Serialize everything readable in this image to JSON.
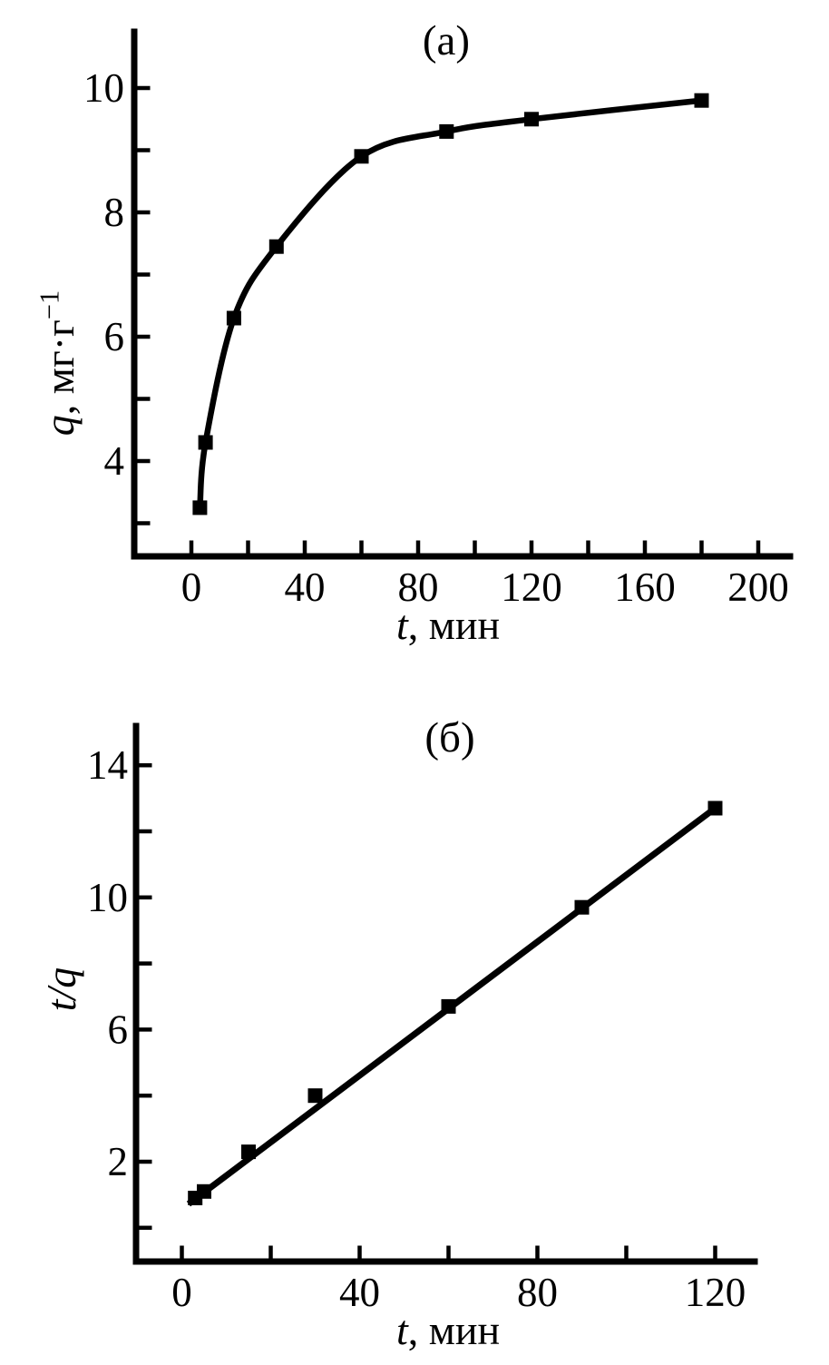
{
  "page": {
    "background": "#ffffff",
    "ink": "#000000"
  },
  "chart_data": [
    {
      "id": "a",
      "type": "scatter",
      "title": "(а)",
      "xlabel": "t, мин",
      "xlabel_var": "t",
      "xlabel_rest": ", мин",
      "ylabel": "q, мг·г−1",
      "ylabel_var": "q",
      "ylabel_rest": ", мг·г",
      "ylabel_sup": "−1",
      "x": [
        3,
        5,
        15,
        30,
        60,
        90,
        120,
        180
      ],
      "y": [
        3.25,
        4.3,
        6.3,
        7.45,
        8.9,
        9.3,
        9.5,
        9.8
      ],
      "curve": "smooth",
      "marker": "square",
      "marker_color": "#000000",
      "line_color": "#000000",
      "grid": false,
      "legend": null,
      "xlim": [
        -20,
        211
      ],
      "ylim": [
        2.45,
        10.45
      ],
      "x_ticks": [
        0,
        20,
        40,
        60,
        80,
        100,
        120,
        140,
        160,
        180,
        200
      ],
      "x_tick_label_values": [
        0,
        40,
        80,
        120,
        160,
        200
      ],
      "x_tick_labels": [
        "0",
        "40",
        "80",
        "120",
        "160",
        "200"
      ],
      "y_ticks": [
        3,
        4,
        5,
        6,
        7,
        8,
        9,
        10
      ],
      "y_tick_label_values": [
        4,
        6,
        8,
        10
      ],
      "y_tick_labels": [
        "4",
        "6",
        "8",
        "10"
      ]
    },
    {
      "id": "b",
      "type": "scatter",
      "title": "(б)",
      "xlabel": "t, мин",
      "xlabel_var": "t",
      "xlabel_rest": ", мин",
      "ylabel": "t/q",
      "ylabel_var": "t/q",
      "ylabel_rest": "",
      "ylabel_sup": "",
      "x": [
        3,
        5,
        15,
        30,
        60,
        90,
        120
      ],
      "y": [
        0.9,
        1.1,
        2.3,
        4.0,
        6.7,
        9.7,
        12.7
      ],
      "fit_line": [
        [
          1.5,
          0.72
        ],
        [
          120,
          12.7
        ]
      ],
      "marker": "square",
      "marker_color": "#000000",
      "line_color": "#000000",
      "grid": false,
      "legend": null,
      "xlim": [
        -10.3,
        129
      ],
      "ylim": [
        -1.1,
        16.2
      ],
      "x_ticks": [
        0,
        20,
        40,
        60,
        80,
        100,
        120
      ],
      "x_tick_label_values": [
        0,
        40,
        80,
        120
      ],
      "x_tick_labels": [
        "0",
        "40",
        "80",
        "120"
      ],
      "y_ticks": [
        0,
        2,
        4,
        6,
        8,
        10,
        12,
        14
      ],
      "y_tick_label_values": [
        2,
        6,
        10,
        14
      ],
      "y_tick_labels": [
        "2",
        "6",
        "10",
        "14"
      ]
    }
  ]
}
